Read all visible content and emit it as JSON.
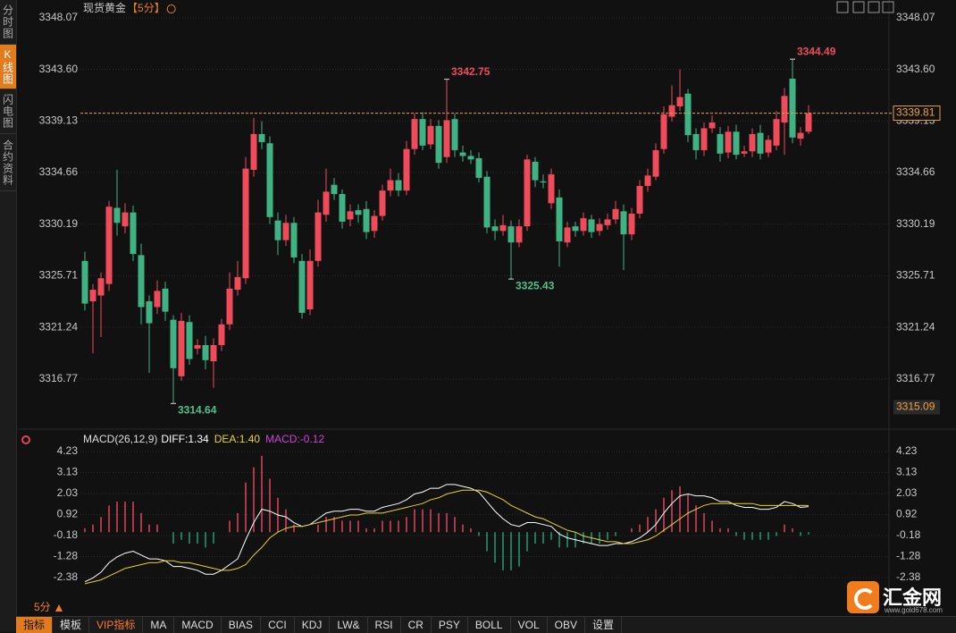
{
  "sidebar_tabs": [
    "分时图",
    "K线图",
    "闪电图",
    "合约资料"
  ],
  "sidebar_active": 1,
  "toolbar_tabs": [
    "指标",
    "模板",
    "VIP指标",
    "MA",
    "MACD",
    "BIAS",
    "CCI",
    "KDJ",
    "LW&",
    "RSI",
    "CR",
    "PSY",
    "BOLL",
    "VOL",
    "OBV",
    "设置"
  ],
  "period_label": "5分",
  "logo": {
    "name": "汇金网",
    "url": "www.gold678.com"
  },
  "chart_data": [
    {
      "type": "candlestick",
      "title": "现货黄金",
      "subtitle": "【5分】",
      "up_color": "#f04b5b",
      "down_color": "#3fb384",
      "grid": true,
      "ylim": [
        3313.19,
        3348.07
      ],
      "yticks": [
        3348.07,
        {
          "value": 3343.6,
          "label": "3343.60"
        },
        3339.13,
        3334.66,
        3330.19,
        3325.71,
        3321.24,
        3316.77
      ],
      "current_price": 3339.81,
      "axis_marker": 3315.09,
      "annotations": [
        {
          "index": 45,
          "value": 3342.75,
          "kind": "high"
        },
        {
          "index": 11,
          "value": 3314.64,
          "kind": "low"
        },
        {
          "index": 53,
          "value": 3325.43,
          "kind": "low"
        },
        {
          "index": 88,
          "value": 3344.49,
          "kind": "high"
        }
      ],
      "open": [
        3327.0,
        3323.5,
        3324.0,
        3325.0,
        3331.6,
        3330.0,
        3331.2,
        3327.5,
        3323.5,
        3323.0,
        3324.6,
        3321.9,
        3317.0,
        3321.7,
        3319.4,
        3319.7,
        3318.3,
        3319.7,
        3321.5,
        3324.5,
        3325.5,
        3334.9,
        3338.0,
        3337.2,
        3330.5,
        3328.8,
        3330.3,
        3327.0,
        3322.8,
        3327.0,
        3331.0,
        3333.6,
        3332.8,
        3330.6,
        3331.4,
        3331.5,
        3329.6,
        3330.9,
        3333.1,
        3334.0,
        3333.1,
        3336.7,
        3339.3,
        3337.1,
        3338.7,
        3336.0,
        3339.3,
        3336.4,
        3336.1,
        3335.9,
        3334.3,
        3330.0,
        3329.6,
        3330.0,
        3328.6,
        3330.0,
        3335.6,
        3333.9,
        3332.0,
        3332.5,
        3328.6,
        3330.0,
        3329.6,
        3330.6,
        3329.6,
        3330.1,
        3330.6,
        3331.3,
        3329.3,
        3331.1,
        3333.5,
        3334.3,
        3336.7,
        3339.5,
        3340.4,
        3341.5,
        3338.0,
        3336.6,
        3338.5,
        3338.0,
        3336.4,
        3338.2,
        3336.3,
        3336.5,
        3338.1,
        3336.4,
        3337.0,
        3339.0,
        3342.8,
        3337.6,
        3338.2
      ],
      "high": [
        3327.8,
        3325.0,
        3326.0,
        3332.2,
        3334.9,
        3332.0,
        3331.8,
        3328.5,
        3324.0,
        3325.3,
        3325.2,
        3322.3,
        3322.5,
        3322.3,
        3320.2,
        3320.5,
        3320.3,
        3322.0,
        3326.0,
        3327.0,
        3336.0,
        3339.4,
        3339.1,
        3337.8,
        3331.2,
        3331.0,
        3330.8,
        3327.6,
        3328.0,
        3332.3,
        3335.0,
        3334.2,
        3333.2,
        3331.9,
        3331.9,
        3332.2,
        3331.4,
        3333.6,
        3335.0,
        3334.6,
        3337.4,
        3339.8,
        3339.9,
        3339.3,
        3339.2,
        3342.75,
        3339.8,
        3337.0,
        3336.6,
        3336.4,
        3334.8,
        3330.6,
        3331.0,
        3330.5,
        3330.6,
        3336.2,
        3336.0,
        3334.5,
        3335.0,
        3333.2,
        3330.4,
        3330.4,
        3331.2,
        3331.0,
        3330.7,
        3331.1,
        3332.2,
        3331.9,
        3331.6,
        3334.0,
        3335.0,
        3337.2,
        3340.4,
        3342.2,
        3343.6,
        3341.9,
        3338.5,
        3339.0,
        3339.6,
        3338.6,
        3338.7,
        3338.8,
        3337.0,
        3338.5,
        3338.8,
        3337.9,
        3340.0,
        3342.0,
        3344.49,
        3338.6,
        3340.5
      ],
      "low": [
        3322.7,
        3319.0,
        3320.4,
        3324.4,
        3329.2,
        3329.4,
        3327.0,
        3321.5,
        3317.3,
        3322.4,
        3321.8,
        3314.64,
        3316.6,
        3318.0,
        3318.9,
        3317.6,
        3316.0,
        3319.2,
        3321.0,
        3324.0,
        3325.0,
        3334.3,
        3336.7,
        3330.2,
        3327.5,
        3328.3,
        3326.8,
        3322.0,
        3322.3,
        3326.5,
        3330.4,
        3332.3,
        3329.8,
        3330.0,
        3330.3,
        3328.9,
        3329.0,
        3330.5,
        3332.6,
        3332.6,
        3332.7,
        3336.2,
        3336.6,
        3336.7,
        3335.0,
        3335.5,
        3336.0,
        3335.6,
        3335.4,
        3333.8,
        3329.4,
        3328.8,
        3329.2,
        3325.43,
        3328.2,
        3329.6,
        3333.4,
        3333.3,
        3331.5,
        3326.5,
        3328.2,
        3329.1,
        3329.2,
        3329.0,
        3329.2,
        3329.7,
        3330.2,
        3326.2,
        3328.8,
        3330.7,
        3333.0,
        3334.0,
        3336.3,
        3339.1,
        3340.0,
        3337.3,
        3335.8,
        3336.1,
        3338.1,
        3335.6,
        3335.9,
        3335.8,
        3336.0,
        3336.0,
        3335.8,
        3336.0,
        3336.6,
        3336.2,
        3337.2,
        3337.0,
        3338.0
      ],
      "close": [
        3323.3,
        3324.5,
        3325.5,
        3331.7,
        3330.3,
        3331.2,
        3327.6,
        3323.0,
        3321.6,
        3324.4,
        3322.6,
        3317.7,
        3321.8,
        3318.5,
        3319.7,
        3318.4,
        3319.7,
        3321.5,
        3324.6,
        3325.6,
        3335.0,
        3338.0,
        3337.3,
        3330.8,
        3328.8,
        3330.3,
        3327.3,
        3322.5,
        3327.0,
        3331.2,
        3333.0,
        3332.8,
        3330.4,
        3331.3,
        3331.0,
        3329.5,
        3330.9,
        3333.1,
        3334.0,
        3333.1,
        3336.7,
        3339.3,
        3337.0,
        3338.7,
        3335.5,
        3339.2,
        3336.6,
        3336.1,
        3335.8,
        3334.2,
        3329.9,
        3329.6,
        3330.1,
        3328.6,
        3330.0,
        3335.8,
        3334.0,
        3333.8,
        3334.5,
        3328.7,
        3329.9,
        3329.6,
        3330.7,
        3329.5,
        3330.2,
        3330.6,
        3331.5,
        3329.3,
        3331.1,
        3333.5,
        3334.4,
        3336.6,
        3339.7,
        3340.5,
        3341.2,
        3337.9,
        3336.6,
        3338.5,
        3339.0,
        3336.3,
        3338.2,
        3336.2,
        3336.5,
        3338.0,
        3336.3,
        3337.5,
        3339.3,
        3341.3,
        3337.7,
        3338.1,
        3339.81
      ]
    },
    {
      "type": "macd",
      "title": "MACD(26,12,9)",
      "grid": true,
      "ylim": [
        -2.8,
        4.6
      ],
      "yticks": [
        4.23,
        3.13,
        2.03,
        0.92,
        -0.18,
        -1.28,
        -2.38
      ],
      "series": [
        {
          "name": "DIFF:1.34",
          "color": "#ffffff",
          "type": "line",
          "values": [
            -2.6,
            -2.4,
            -2.1,
            -1.6,
            -1.3,
            -1.1,
            -1.0,
            -1.2,
            -1.4,
            -1.4,
            -1.5,
            -1.8,
            -1.8,
            -1.9,
            -2.0,
            -2.2,
            -2.2,
            -2.0,
            -1.7,
            -1.4,
            -0.4,
            0.5,
            1.2,
            1.1,
            0.9,
            0.8,
            0.5,
            0.3,
            0.4,
            0.7,
            1.0,
            1.1,
            1.1,
            1.2,
            1.2,
            1.1,
            1.1,
            1.3,
            1.4,
            1.5,
            1.7,
            2.0,
            2.1,
            2.3,
            2.3,
            2.5,
            2.5,
            2.4,
            2.3,
            2.1,
            1.6,
            1.1,
            0.7,
            0.4,
            0.3,
            0.5,
            0.5,
            0.4,
            0.3,
            -0.1,
            -0.3,
            -0.4,
            -0.5,
            -0.6,
            -0.7,
            -0.7,
            -0.6,
            -0.6,
            -0.5,
            -0.3,
            0.0,
            0.4,
            1.0,
            1.5,
            1.9,
            2.0,
            1.9,
            1.9,
            1.8,
            1.6,
            1.6,
            1.4,
            1.3,
            1.3,
            1.2,
            1.2,
            1.3,
            1.6,
            1.5,
            1.3,
            1.34
          ]
        },
        {
          "name": "DEA:1.40",
          "color": "#e8d22a",
          "type": "line",
          "values": [
            -2.7,
            -2.6,
            -2.5,
            -2.3,
            -2.1,
            -1.9,
            -1.8,
            -1.7,
            -1.6,
            -1.6,
            -1.5,
            -1.5,
            -1.6,
            -1.6,
            -1.7,
            -1.8,
            -1.9,
            -2.0,
            -2.0,
            -1.9,
            -1.7,
            -1.2,
            -0.8,
            -0.3,
            0.0,
            0.2,
            0.3,
            0.3,
            0.4,
            0.5,
            0.6,
            0.7,
            0.8,
            0.9,
            0.9,
            1.0,
            1.0,
            1.0,
            1.1,
            1.2,
            1.3,
            1.4,
            1.5,
            1.7,
            1.8,
            2.0,
            2.1,
            2.2,
            2.2,
            2.2,
            2.1,
            1.9,
            1.7,
            1.4,
            1.2,
            1.0,
            0.8,
            0.7,
            0.5,
            0.3,
            0.1,
            0.0,
            -0.2,
            -0.3,
            -0.4,
            -0.5,
            -0.5,
            -0.6,
            -0.6,
            -0.5,
            -0.4,
            -0.2,
            0.1,
            0.4,
            0.7,
            1.0,
            1.2,
            1.4,
            1.5,
            1.5,
            1.5,
            1.5,
            1.5,
            1.5,
            1.4,
            1.4,
            1.4,
            1.4,
            1.4,
            1.4,
            1.4
          ]
        },
        {
          "name": "MACD:-0.12",
          "color": "#d040d8",
          "type": "histogram",
          "up_color": "#e0445a",
          "down_color": "#1f9e72",
          "values": [
            0.2,
            0.4,
            0.8,
            1.4,
            1.6,
            1.6,
            1.6,
            1.0,
            0.4,
            0.4,
            0.0,
            -0.6,
            -0.4,
            -0.6,
            -0.6,
            -0.8,
            -0.6,
            0.0,
            0.6,
            1.0,
            2.6,
            3.4,
            4.0,
            2.8,
            1.8,
            1.2,
            0.4,
            0.0,
            0.0,
            0.4,
            0.8,
            0.8,
            0.6,
            0.6,
            0.6,
            0.2,
            0.2,
            0.6,
            0.6,
            0.6,
            0.8,
            1.2,
            1.2,
            1.2,
            1.0,
            1.0,
            0.8,
            0.4,
            0.2,
            -0.2,
            -1.0,
            -1.6,
            -2.0,
            -2.0,
            -1.8,
            -1.0,
            -0.6,
            -0.6,
            -0.4,
            -0.8,
            -0.8,
            -0.8,
            -0.6,
            -0.6,
            -0.6,
            -0.4,
            -0.2,
            0.0,
            0.2,
            0.4,
            0.8,
            1.2,
            1.8,
            2.2,
            2.4,
            2.0,
            1.4,
            1.0,
            0.6,
            0.2,
            0.2,
            -0.2,
            -0.4,
            -0.4,
            -0.4,
            -0.4,
            -0.2,
            0.4,
            0.2,
            -0.2,
            -0.12
          ]
        }
      ]
    }
  ]
}
